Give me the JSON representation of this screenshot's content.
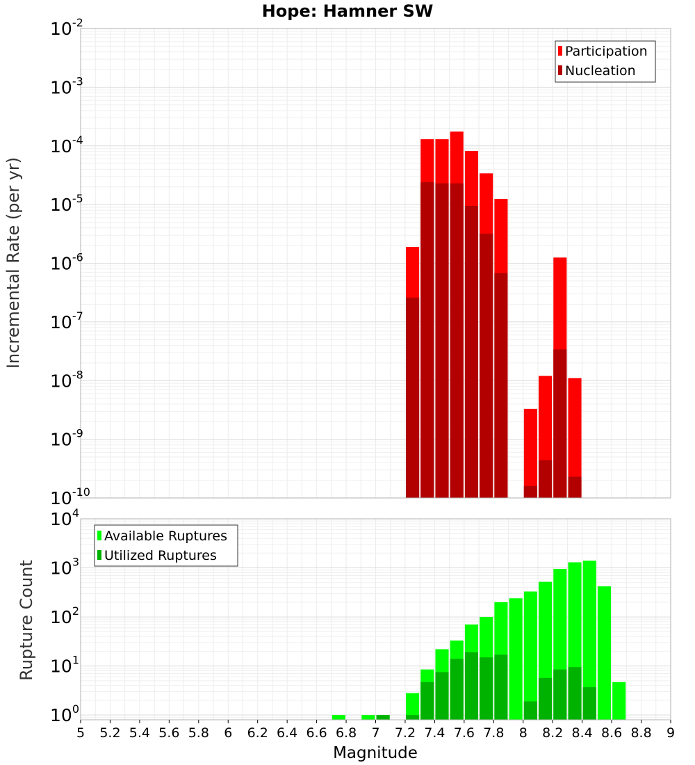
{
  "chart_data": [
    {
      "type": "bar",
      "title": "Hope: Hamner SW",
      "xlabel": "Magnitude",
      "ylabel": "Incremental Rate (per yr)",
      "yscale": "log",
      "xlim": [
        5,
        9
      ],
      "ylim": [
        1e-10,
        0.01
      ],
      "legend": "top-right",
      "grid": true,
      "x": [
        7.25,
        7.35,
        7.45,
        7.55,
        7.65,
        7.75,
        7.85,
        8.05,
        8.15,
        8.25,
        8.35
      ],
      "series": [
        {
          "name": "Participation",
          "color": "#ff0000",
          "values": [
            1.9e-06,
            0.00013,
            0.00013,
            0.000175,
            8.2e-05,
            3.4e-05,
            1.25e-05,
            3.3e-09,
            1.2e-08,
            1.25e-06,
            1.1e-08
          ]
        },
        {
          "name": "Nucleation",
          "color": "#b20000",
          "values": [
            2.6e-07,
            2.4e-05,
            2.3e-05,
            2.3e-05,
            9.5e-06,
            3.2e-06,
            6.8e-07,
            1.6e-10,
            4.4e-10,
            3.4e-08,
            2.3e-10
          ]
        }
      ]
    },
    {
      "type": "bar",
      "xlabel": "Magnitude",
      "ylabel": "Rupture Count",
      "yscale": "log",
      "xlim": [
        5,
        9
      ],
      "ylim": [
        0.8,
        10000
      ],
      "legend": "top-left",
      "grid": true,
      "x": [
        6.75,
        6.95,
        7.05,
        7.25,
        7.35,
        7.45,
        7.55,
        7.65,
        7.75,
        7.85,
        7.95,
        8.05,
        8.15,
        8.25,
        8.35,
        8.45,
        8.55,
        8.65
      ],
      "series": [
        {
          "name": "Available Ruptures",
          "color": "#00ff00",
          "values": [
            1,
            1,
            1,
            2.8,
            8.5,
            22,
            33,
            70,
            100,
            200,
            240,
            330,
            520,
            950,
            1300,
            1400,
            420,
            4.7
          ]
        },
        {
          "name": "Utilized Ruptures",
          "color": "#00b200",
          "values": [
            0,
            0,
            1,
            1,
            4.7,
            7.5,
            14,
            19,
            15,
            17,
            0,
            1.9,
            5.7,
            8.5,
            9.5,
            3.7,
            0,
            0
          ]
        }
      ]
    }
  ],
  "x_ticks": [
    "5",
    "5.2",
    "5.4",
    "5.6",
    "5.8",
    "6",
    "6.2",
    "6.4",
    "6.6",
    "6.8",
    "7",
    "7.2",
    "7.4",
    "7.6",
    "7.8",
    "8",
    "8.2",
    "8.4",
    "8.6",
    "8.8",
    "9"
  ],
  "top_yticks": [
    {
      "base": "10",
      "exp": "-2"
    },
    {
      "base": "10",
      "exp": "-3"
    },
    {
      "base": "10",
      "exp": "-4"
    },
    {
      "base": "10",
      "exp": "-5"
    },
    {
      "base": "10",
      "exp": "-6"
    },
    {
      "base": "10",
      "exp": "-7"
    },
    {
      "base": "10",
      "exp": "-8"
    },
    {
      "base": "10",
      "exp": "-9"
    },
    {
      "base": "10",
      "exp": "-10"
    }
  ],
  "bottom_yticks": [
    {
      "base": "10",
      "exp": "4"
    },
    {
      "base": "10",
      "exp": "3"
    },
    {
      "base": "10",
      "exp": "2"
    },
    {
      "base": "10",
      "exp": "1"
    },
    {
      "base": "10",
      "exp": "0"
    }
  ]
}
